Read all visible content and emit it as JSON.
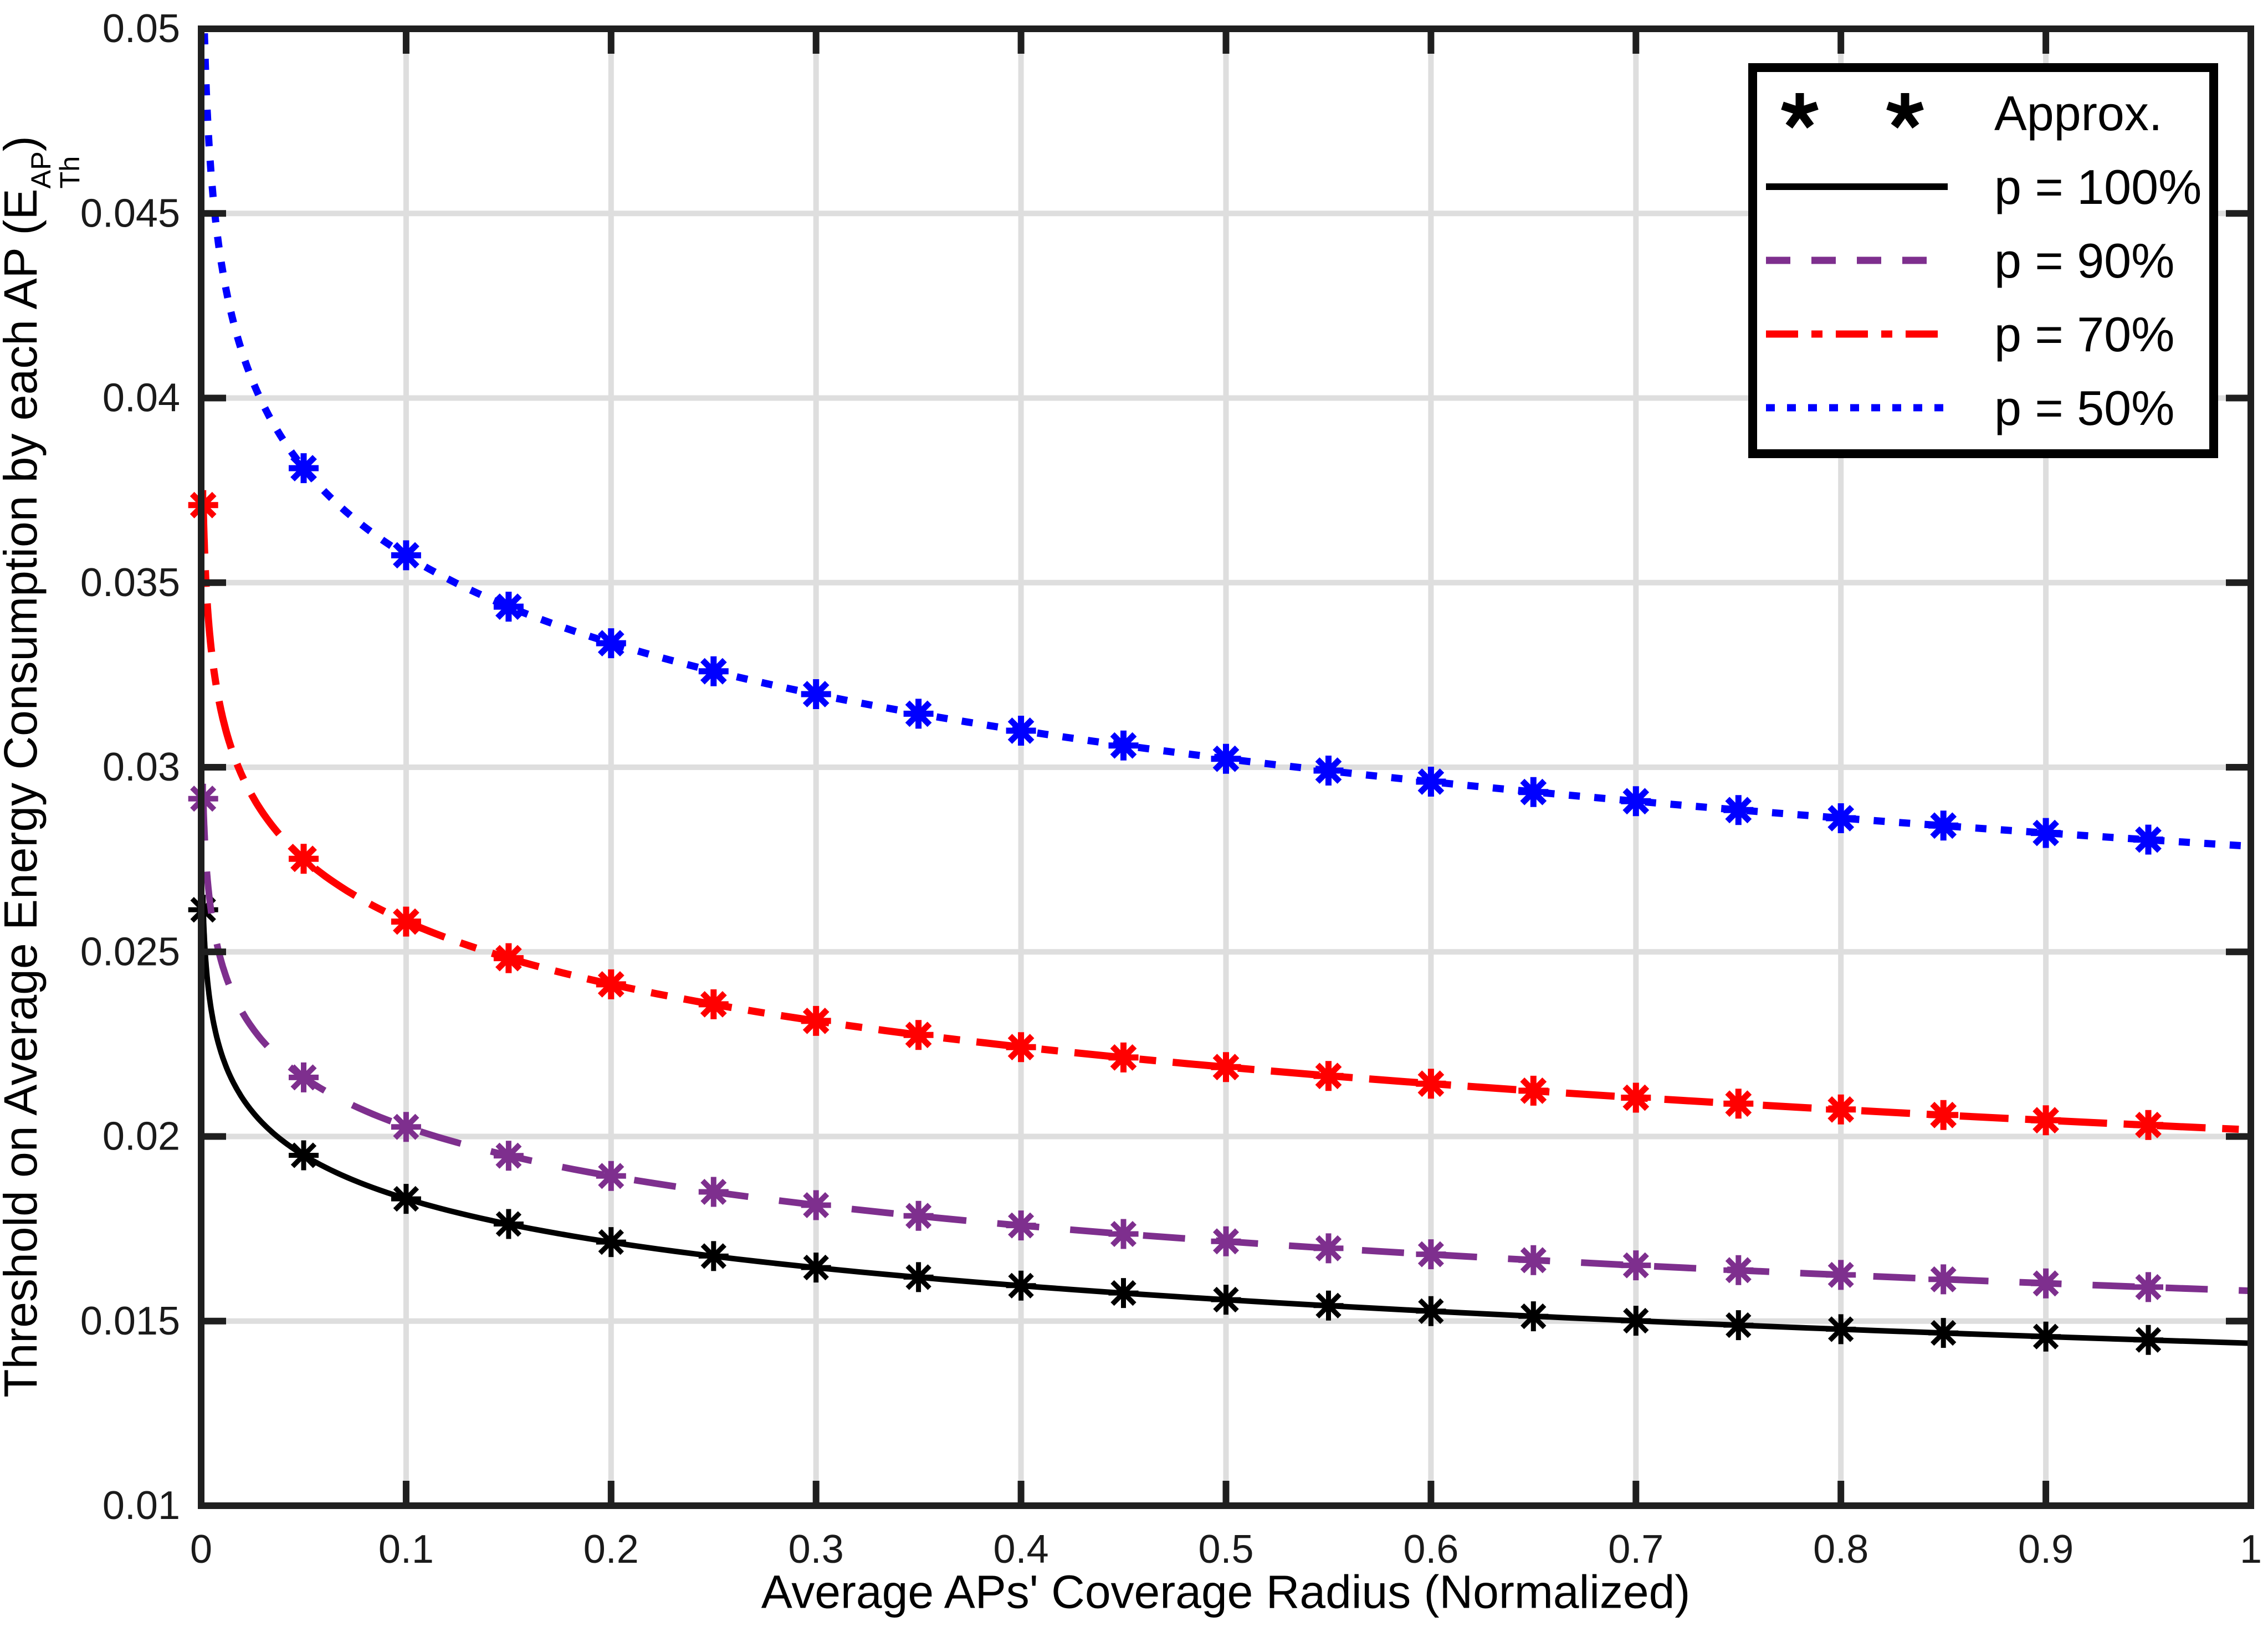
{
  "figure": {
    "xlabel": "Average APs' Coverage Radius",
    "xlabel_suffix": " (Normalized)",
    "ylabel_prefix": "Threshold on Average Energy Consumption by each AP (E",
    "ylabel_sup": "AP",
    "ylabel_sub": "Th",
    "ylabel_close": ")",
    "background": "#ffffff",
    "grid_color": "#dedede",
    "axis_color": "#1f1f1f",
    "tick_label_color": "#1a1a1a"
  },
  "legend": {
    "title": "Approx.",
    "approx_marker": "*",
    "marker_color": "#000000",
    "position": "northeast",
    "items": [
      {
        "label": "p = 100%",
        "color": "#000000",
        "style": "solid"
      },
      {
        "label": "p = 90%",
        "color": "#7E2F8E",
        "style": "dashed"
      },
      {
        "label": "p = 70%",
        "color": "#FF0000",
        "style": "dashdot"
      },
      {
        "label": "p = 50%",
        "color": "#0000FF",
        "style": "dotted"
      }
    ]
  },
  "chart_data": {
    "type": "line",
    "title": "",
    "xlabel": "Average APs' Coverage Radius (Normalized)",
    "ylabel": "Threshold on Average Energy Consumption by each AP (E_Th^AP)",
    "xlim": [
      0,
      1
    ],
    "ylim": [
      0.01,
      0.05
    ],
    "xticks": [
      0,
      0.1,
      0.2,
      0.3,
      0.4,
      0.5,
      0.6,
      0.7,
      0.8,
      0.9,
      1
    ],
    "xtick_labels": [
      "0",
      "0.1",
      "0.2",
      "0.3",
      "0.4",
      "0.5",
      "0.6",
      "0.7",
      "0.8",
      "0.9",
      "1"
    ],
    "yticks": [
      0.01,
      0.015,
      0.02,
      0.025,
      0.03,
      0.035,
      0.04,
      0.045,
      0.05
    ],
    "ytick_labels": [
      "0.01",
      "0.015",
      "0.02",
      "0.025",
      "0.03",
      "0.035",
      "0.04",
      "0.045",
      "0.05"
    ],
    "grid": true,
    "legend_position": "northeast",
    "markers_label": "Approx.",
    "series": [
      {
        "id": "p100",
        "name": "p = 100%",
        "color": "#000000",
        "linestyle": "solid",
        "marker": "*",
        "marker_x": [
          0.001,
          0.05,
          0.1,
          0.15,
          0.2,
          0.25,
          0.3,
          0.35,
          0.4,
          0.45,
          0.5,
          0.55,
          0.6,
          0.65,
          0.7,
          0.75,
          0.8,
          0.85,
          0.9,
          0.95
        ],
        "marker_y": [
          0.02614,
          0.01949,
          0.01831,
          0.01763,
          0.01714,
          0.01676,
          0.01645,
          0.01619,
          0.01596,
          0.01576,
          0.01558,
          0.01542,
          0.01527,
          0.01513,
          0.01501,
          0.01489,
          0.01478,
          0.01468,
          0.01458,
          0.01449
        ],
        "line_fit": {
          "a": 0.0144,
          "b": 0.0017,
          "x_start": 0.001,
          "x_end": 1.0
        }
      },
      {
        "id": "p90",
        "name": "p = 90%",
        "color": "#7E2F8E",
        "linestyle": "dashed",
        "marker": "*",
        "marker_x": [
          0.001,
          0.05,
          0.1,
          0.15,
          0.2,
          0.25,
          0.3,
          0.35,
          0.4,
          0.45,
          0.5,
          0.55,
          0.6,
          0.65,
          0.7,
          0.75,
          0.8,
          0.85,
          0.9,
          0.95
        ],
        "marker_y": [
          0.02915,
          0.0216,
          0.02026,
          0.01948,
          0.01893,
          0.0185,
          0.01814,
          0.01785,
          0.01759,
          0.01736,
          0.01716,
          0.01697,
          0.01681,
          0.01665,
          0.01651,
          0.01638,
          0.01625,
          0.01613,
          0.01602,
          0.01592
        ],
        "line_fit": {
          "a": 0.01582,
          "b": 0.00193,
          "x_start": 0.001,
          "x_end": 1.0
        }
      },
      {
        "id": "p70",
        "name": "p = 70%",
        "color": "#FF0000",
        "linestyle": "dashdot",
        "marker": "*",
        "marker_x": [
          0.001,
          0.05,
          0.1,
          0.15,
          0.2,
          0.25,
          0.3,
          0.35,
          0.4,
          0.45,
          0.5,
          0.55,
          0.6,
          0.65,
          0.7,
          0.75,
          0.8,
          0.85,
          0.9,
          0.95
        ],
        "marker_y": [
          0.0371,
          0.02752,
          0.02582,
          0.02483,
          0.02412,
          0.02358,
          0.02313,
          0.02275,
          0.02242,
          0.02214,
          0.02188,
          0.02164,
          0.02143,
          0.02124,
          0.02105,
          0.02089,
          0.02073,
          0.02058,
          0.02044,
          0.02031
        ],
        "line_fit": {
          "a": 0.02018,
          "b": 0.00245,
          "x_start": 0.001,
          "x_end": 1.0
        }
      },
      {
        "id": "p50",
        "name": "p = 50%",
        "color": "#0000FF",
        "linestyle": "dotted",
        "marker": "*",
        "marker_x": [
          0.05,
          0.1,
          0.15,
          0.2,
          0.25,
          0.3,
          0.35,
          0.4,
          0.45,
          0.5,
          0.55,
          0.6,
          0.65,
          0.7,
          0.75,
          0.8,
          0.85,
          0.9,
          0.95
        ],
        "marker_y": [
          0.0381,
          0.03574,
          0.03435,
          0.03336,
          0.0326,
          0.03198,
          0.03145,
          0.03099,
          0.03059,
          0.03023,
          0.02991,
          0.02961,
          0.02933,
          0.02908,
          0.02884,
          0.02862,
          0.02842,
          0.02822,
          0.02804
        ],
        "line_fit": {
          "a": 0.02786,
          "b": 0.00342,
          "x_start": 0.0016,
          "x_end": 1.0
        }
      }
    ]
  }
}
